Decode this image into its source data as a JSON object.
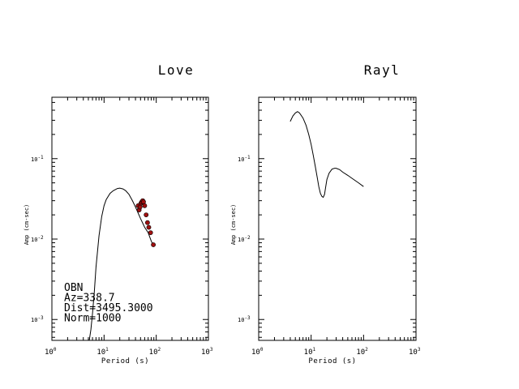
{
  "chart_data": [
    {
      "type": "line",
      "title": "Love",
      "xlabel": "Period (s)",
      "ylabel": "Amp (cm-sec)",
      "x_scale": "log",
      "y_scale": "log",
      "xlim": [
        1,
        1000
      ],
      "ylim": [
        0.00055,
        0.58
      ],
      "x_ticks": [
        {
          "base": "10",
          "exp": "0"
        },
        {
          "base": "10",
          "exp": "1"
        },
        {
          "base": "10",
          "exp": "2"
        },
        {
          "base": "10",
          "exp": "3"
        }
      ],
      "y_ticks": [
        {
          "base": "10",
          "exp": "-3"
        },
        {
          "base": "10",
          "exp": "-2"
        },
        {
          "base": "10",
          "exp": "-1"
        }
      ],
      "series": [
        {
          "kind": "line",
          "x": [
            5.2,
            5.6,
            6.0,
            6.5,
            7.0,
            8.0,
            9.0,
            10.0,
            11.0,
            13.0,
            15.0,
            18.0,
            20.0,
            23.0,
            26.0,
            30.0,
            35.0,
            40.0,
            45.0,
            50.0,
            60.0,
            70.0,
            80.0,
            90.0
          ],
          "y": [
            0.00055,
            0.00075,
            0.0012,
            0.0022,
            0.0045,
            0.011,
            0.019,
            0.026,
            0.031,
            0.037,
            0.04,
            0.0425,
            0.043,
            0.042,
            0.04,
            0.036,
            0.03,
            0.025,
            0.021,
            0.018,
            0.014,
            0.012,
            0.0095,
            0.008
          ]
        },
        {
          "kind": "scatter",
          "color": "#a01010",
          "x": [
            45,
            47,
            49,
            51,
            53,
            55,
            57,
            60,
            64,
            68,
            72,
            78,
            88
          ],
          "y": [
            0.026,
            0.023,
            0.025,
            0.028,
            0.029,
            0.03,
            0.029,
            0.026,
            0.02,
            0.016,
            0.014,
            0.012,
            0.0085
          ]
        }
      ],
      "annotations": [
        "OBN",
        "Az=338.7",
        "Dist=3495.3000",
        "Norm=1000"
      ]
    },
    {
      "type": "line",
      "title": "Rayl",
      "xlabel": "Period (s)",
      "ylabel": "Amp (cm-sec)",
      "x_scale": "log",
      "y_scale": "log",
      "xlim": [
        1,
        1000
      ],
      "ylim": [
        0.00055,
        0.58
      ],
      "x_ticks": [
        {
          "base": "10",
          "exp": "0"
        },
        {
          "base": "10",
          "exp": "1"
        },
        {
          "base": "10",
          "exp": "2"
        },
        {
          "base": "10",
          "exp": "3"
        }
      ],
      "y_ticks": [
        {
          "base": "10",
          "exp": "-3"
        },
        {
          "base": "10",
          "exp": "-2"
        },
        {
          "base": "10",
          "exp": "-1"
        }
      ],
      "series": [
        {
          "kind": "line",
          "x": [
            4.0,
            4.5,
            5.0,
            5.5,
            6.0,
            7.0,
            8.0,
            9.0,
            10.0,
            11.0,
            12.0,
            13.0,
            14.0,
            15.0,
            16.0,
            17.0,
            18.0,
            19.0,
            20.0,
            22.0,
            25.0,
            28.0,
            30.0,
            35.0,
            40.0,
            50.0,
            60.0,
            80.0,
            100.0
          ],
          "y": [
            0.29,
            0.34,
            0.37,
            0.385,
            0.37,
            0.32,
            0.26,
            0.2,
            0.15,
            0.11,
            0.08,
            0.06,
            0.045,
            0.037,
            0.034,
            0.033,
            0.036,
            0.045,
            0.055,
            0.066,
            0.074,
            0.076,
            0.076,
            0.073,
            0.068,
            0.062,
            0.057,
            0.05,
            0.045
          ]
        }
      ],
      "annotations": []
    }
  ]
}
